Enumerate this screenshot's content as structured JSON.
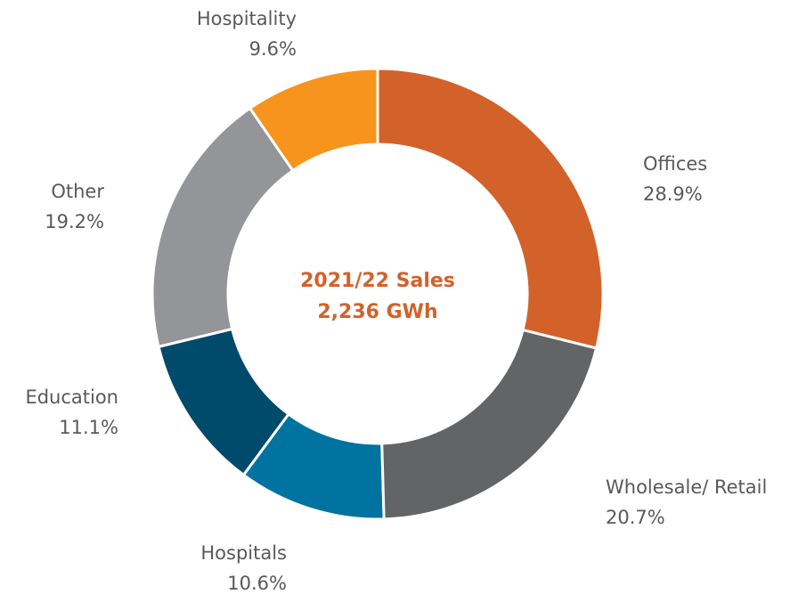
{
  "chart_data": {
    "type": "donut",
    "center_text": [
      "2021/22 Sales",
      "2,236 GWh"
    ],
    "categories": [
      "Offices",
      "Wholesale/ Retail",
      "Hospitals",
      "Education",
      "Other",
      "Hospitality"
    ],
    "values": [
      28.9,
      20.7,
      10.6,
      11.1,
      19.2,
      9.6
    ],
    "value_labels": [
      "28.9%",
      "20.7%",
      "10.6%",
      "11.1%",
      "19.2%",
      "9.6%"
    ],
    "colors": [
      "#d2622a",
      "#636466",
      "#0073a0",
      "#004a6b",
      "#939598",
      "#f7941d"
    ]
  }
}
